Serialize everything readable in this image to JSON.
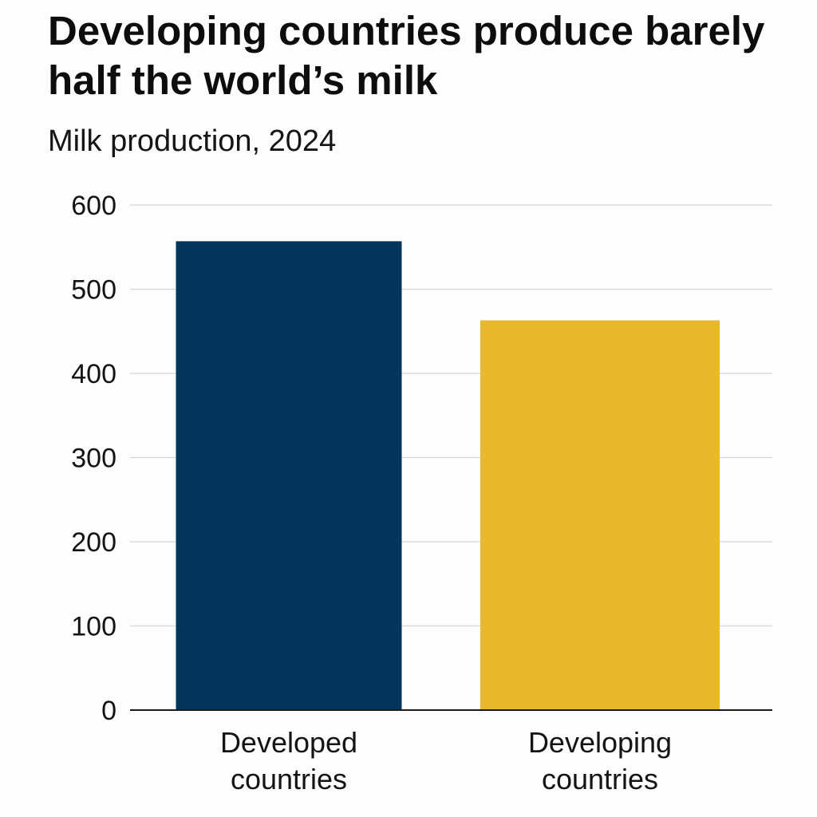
{
  "chart_data": {
    "type": "bar",
    "title": "Developing countries produce barely half the world’s milk",
    "subtitle": "Milk production, 2024",
    "xlabel": "",
    "ylabel": "",
    "categories": [
      [
        "Developed",
        "countries"
      ],
      [
        "Developing",
        "countries"
      ]
    ],
    "values": [
      557,
      463
    ],
    "colors": [
      "#02365c",
      "#e8b92c"
    ],
    "ylim": [
      0,
      600
    ],
    "yticks": [
      0,
      100,
      200,
      300,
      400,
      500,
      600
    ],
    "grid": true,
    "legend": "none"
  }
}
